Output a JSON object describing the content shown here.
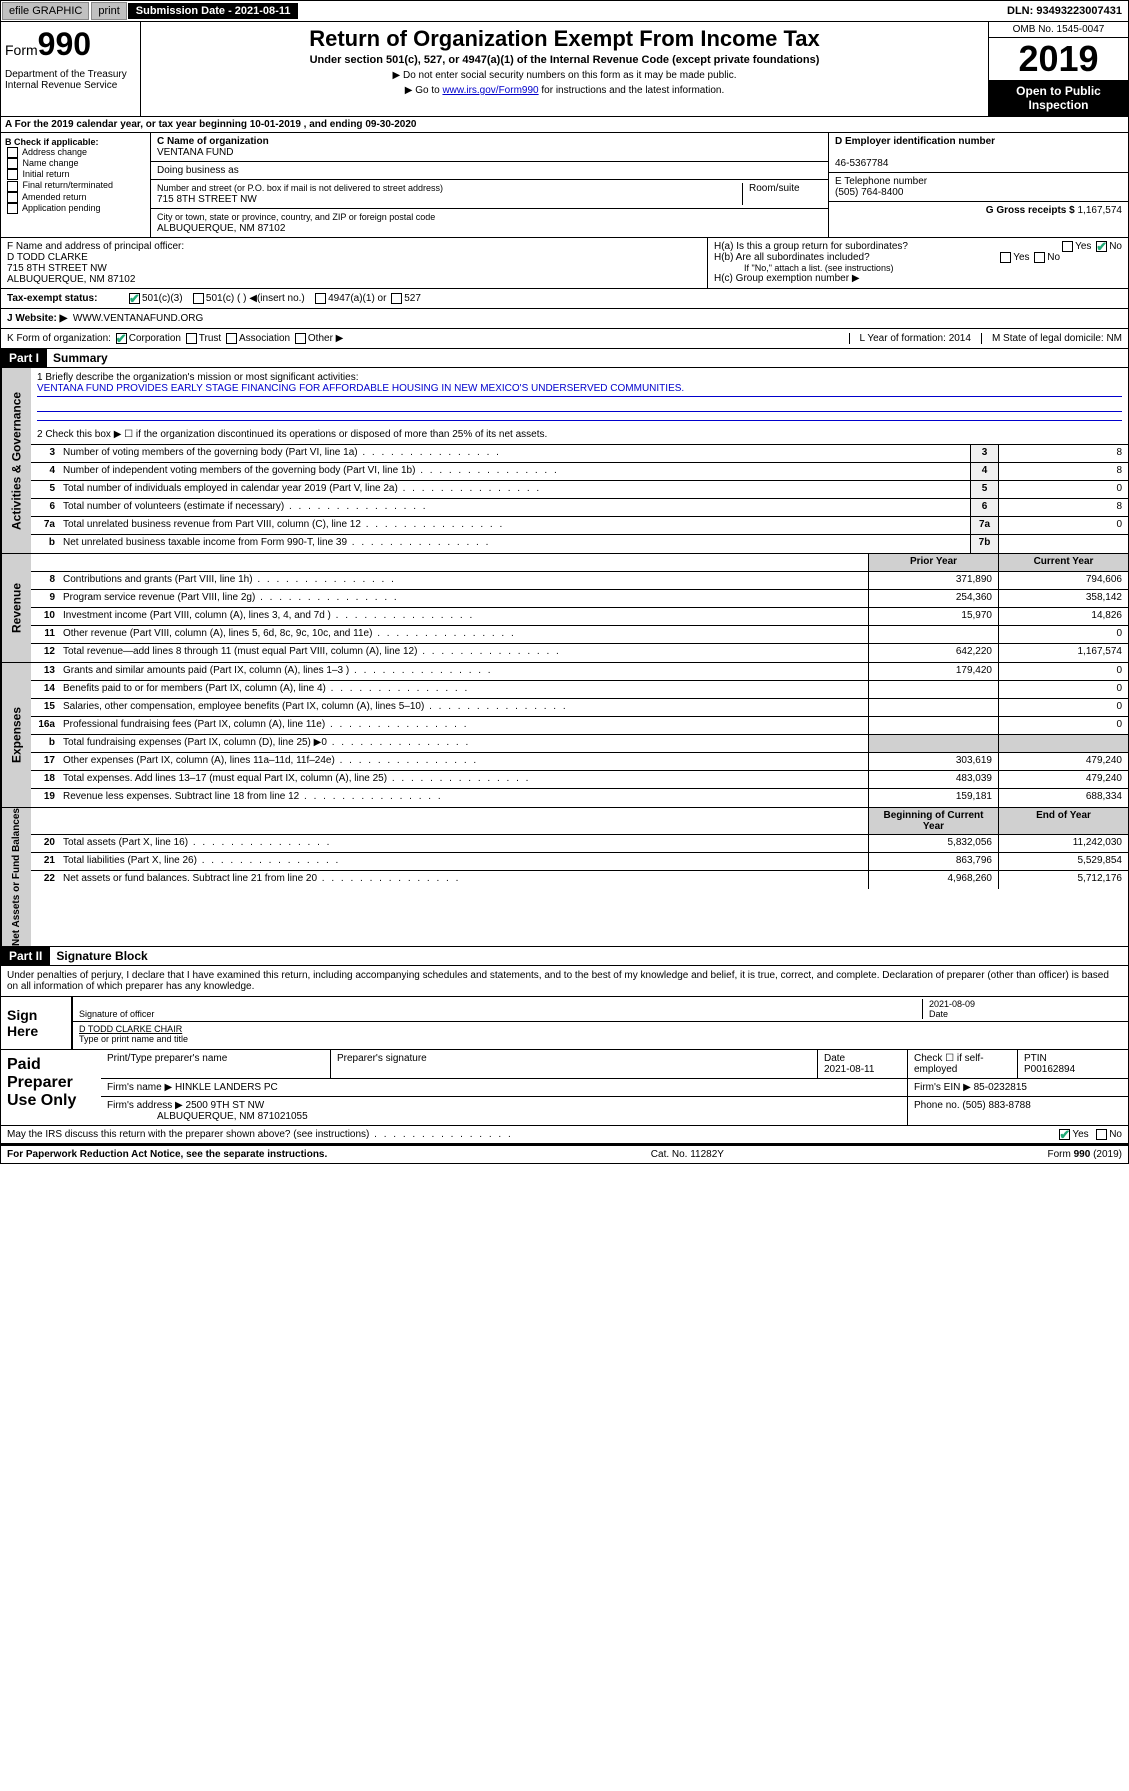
{
  "topbar": {
    "efile": "efile GRAPHIC",
    "print": "print",
    "subdate_lbl": "Submission Date - 2021-08-11",
    "dln": "DLN: 93493223007431"
  },
  "header": {
    "form_label": "Form",
    "form_num": "990",
    "title": "Return of Organization Exempt From Income Tax",
    "subtitle": "Under section 501(c), 527, or 4947(a)(1) of the Internal Revenue Code (except private foundations)",
    "note1": "▶ Do not enter social security numbers on this form as it may be made public.",
    "note2_pre": "▶ Go to ",
    "note2_link": "www.irs.gov/Form990",
    "note2_post": " for instructions and the latest information.",
    "dept": "Department of the Treasury\nInternal Revenue Service",
    "omb": "OMB No. 1545-0047",
    "year": "2019",
    "open": "Open to Public Inspection"
  },
  "period": "A For the 2019 calendar year, or tax year beginning 10-01-2019  , and ending 09-30-2020",
  "check_b": {
    "title": "B Check if applicable:",
    "items": [
      "Address change",
      "Name change",
      "Initial return",
      "Final return/terminated",
      "Amended return",
      "Application pending"
    ]
  },
  "org": {
    "c_lbl": "C Name of organization",
    "name": "VENTANA FUND",
    "dba": "Doing business as",
    "addr_lbl": "Number and street (or P.O. box if mail is not delivered to street address)",
    "room": "Room/suite",
    "addr": "715 8TH STREET NW",
    "city_lbl": "City or town, state or province, country, and ZIP or foreign postal code",
    "city": "ALBUQUERQUE, NM  87102"
  },
  "right_info": {
    "d_lbl": "D Employer identification number",
    "ein": "46-5367784",
    "e_lbl": "E Telephone number",
    "phone": "(505) 764-8400",
    "g_lbl": "G Gross receipts $",
    "gross": "1,167,574"
  },
  "f_block": {
    "f_lbl": "F Name and address of principal officer:",
    "name": "D TODD CLARKE",
    "addr1": "715 8TH STREET NW",
    "addr2": "ALBUQUERQUE, NM  87102"
  },
  "h_block": {
    "ha": "H(a)  Is this a group return for subordinates?",
    "hb": "H(b)  Are all subordinates included?",
    "hb_note": "If \"No,\" attach a list. (see instructions)",
    "hc": "H(c)  Group exemption number ▶"
  },
  "tax_status": {
    "lbl": "Tax-exempt status:",
    "c3": "501(c)(3)",
    "c": "501(c) (  ) ◀(insert no.)",
    "a1": "4947(a)(1) or",
    "s527": "527"
  },
  "website": {
    "lbl": "J   Website: ▶",
    "val": "WWW.VENTANAFUND.ORG"
  },
  "kform": {
    "lbl": "K Form of organization:",
    "corp": "Corporation",
    "trust": "Trust",
    "assoc": "Association",
    "other": "Other ▶",
    "l_lbl": "L Year of formation:",
    "l_val": "2014",
    "m_lbl": "M State of legal domicile:",
    "m_val": "NM"
  },
  "part1": {
    "hdr": "Part I",
    "title": "Summary"
  },
  "summary": {
    "q1": "1  Briefly describe the organization's mission or most significant activities:",
    "mission": "VENTANA FUND PROVIDES EARLY STAGE FINANCING FOR AFFORDABLE HOUSING IN NEW MEXICO'S UNDERSERVED COMMUNITIES.",
    "q2": "2   Check this box ▶ ☐  if the organization discontinued its operations or disposed of more than 25% of its net assets."
  },
  "gov_rows": [
    {
      "n": "3",
      "d": "Number of voting members of the governing body (Part VI, line 1a)",
      "box": "3",
      "v": "8"
    },
    {
      "n": "4",
      "d": "Number of independent voting members of the governing body (Part VI, line 1b)",
      "box": "4",
      "v": "8"
    },
    {
      "n": "5",
      "d": "Total number of individuals employed in calendar year 2019 (Part V, line 2a)",
      "box": "5",
      "v": "0"
    },
    {
      "n": "6",
      "d": "Total number of volunteers (estimate if necessary)",
      "box": "6",
      "v": "8"
    },
    {
      "n": "7a",
      "d": "Total unrelated business revenue from Part VIII, column (C), line 12",
      "box": "7a",
      "v": "0"
    },
    {
      "n": " b",
      "d": "Net unrelated business taxable income from Form 990-T, line 39",
      "box": "7b",
      "v": ""
    }
  ],
  "two_col_hdr": {
    "prior": "Prior Year",
    "current": "Current Year"
  },
  "revenue_rows": [
    {
      "n": "8",
      "d": "Contributions and grants (Part VIII, line 1h)",
      "p": "371,890",
      "c": "794,606"
    },
    {
      "n": "9",
      "d": "Program service revenue (Part VIII, line 2g)",
      "p": "254,360",
      "c": "358,142"
    },
    {
      "n": "10",
      "d": "Investment income (Part VIII, column (A), lines 3, 4, and 7d )",
      "p": "15,970",
      "c": "14,826"
    },
    {
      "n": "11",
      "d": "Other revenue (Part VIII, column (A), lines 5, 6d, 8c, 9c, 10c, and 11e)",
      "p": "",
      "c": "0"
    },
    {
      "n": "12",
      "d": "Total revenue—add lines 8 through 11 (must equal Part VIII, column (A), line 12)",
      "p": "642,220",
      "c": "1,167,574"
    }
  ],
  "expense_rows": [
    {
      "n": "13",
      "d": "Grants and similar amounts paid (Part IX, column (A), lines 1–3 )",
      "p": "179,420",
      "c": "0"
    },
    {
      "n": "14",
      "d": "Benefits paid to or for members (Part IX, column (A), line 4)",
      "p": "",
      "c": "0"
    },
    {
      "n": "15",
      "d": "Salaries, other compensation, employee benefits (Part IX, column (A), lines 5–10)",
      "p": "",
      "c": "0"
    },
    {
      "n": "16a",
      "d": "Professional fundraising fees (Part IX, column (A), line 11e)",
      "p": "",
      "c": "0"
    },
    {
      "n": "b",
      "d": "Total fundraising expenses (Part IX, column (D), line 25) ▶0",
      "p": "",
      "c": "",
      "shaded": true
    },
    {
      "n": "17",
      "d": "Other expenses (Part IX, column (A), lines 11a–11d, 11f–24e)",
      "p": "303,619",
      "c": "479,240"
    },
    {
      "n": "18",
      "d": "Total expenses. Add lines 13–17 (must equal Part IX, column (A), line 25)",
      "p": "483,039",
      "c": "479,240"
    },
    {
      "n": "19",
      "d": "Revenue less expenses. Subtract line 18 from line 12",
      "p": "159,181",
      "c": "688,334"
    }
  ],
  "net_hdr": {
    "beg": "Beginning of Current Year",
    "end": "End of Year"
  },
  "net_rows": [
    {
      "n": "20",
      "d": "Total assets (Part X, line 16)",
      "p": "5,832,056",
      "c": "11,242,030"
    },
    {
      "n": "21",
      "d": "Total liabilities (Part X, line 26)",
      "p": "863,796",
      "c": "5,529,854"
    },
    {
      "n": "22",
      "d": "Net assets or fund balances. Subtract line 21 from line 20",
      "p": "4,968,260",
      "c": "5,712,176"
    }
  ],
  "part2": {
    "hdr": "Part II",
    "title": "Signature Block"
  },
  "declaration": "Under penalties of perjury, I declare that I have examined this return, including accompanying schedules and statements, and to the best of my knowledge and belief, it is true, correct, and complete. Declaration of preparer (other than officer) is based on all information of which preparer has any knowledge.",
  "sign": {
    "here": "Sign Here",
    "sig_lbl": "Signature of officer",
    "date": "2021-08-09",
    "date_lbl": "Date",
    "name": "D TODD CLARKE CHAIR",
    "name_lbl": "Type or print name and title"
  },
  "paid": {
    "lbl": "Paid Preparer Use Only",
    "h1": "Print/Type preparer's name",
    "h2": "Preparer's signature",
    "h3": "Date",
    "h4": "Check ☐ if self-employed",
    "h5": "PTIN",
    "date": "2021-08-11",
    "ptin": "P00162894",
    "firm_lbl": "Firm's name   ▶",
    "firm": "HINKLE LANDERS PC",
    "ein_lbl": "Firm's EIN ▶",
    "ein": "85-0232815",
    "addr_lbl": "Firm's address ▶",
    "addr": "2500 9TH ST NW",
    "addr2": "ALBUQUERQUE, NM  871021055",
    "phone_lbl": "Phone no.",
    "phone": "(505) 883-8788"
  },
  "discuss": "May the IRS discuss this return with the preparer shown above? (see instructions)",
  "footer": {
    "paperwork": "For Paperwork Reduction Act Notice, see the separate instructions.",
    "cat": "Cat. No. 11282Y",
    "form": "Form 990 (2019)"
  },
  "yn": {
    "yes": "Yes",
    "no": "No"
  },
  "sidelabels": {
    "gov": "Activities & Governance",
    "rev": "Revenue",
    "exp": "Expenses",
    "net": "Net Assets or Fund Balances"
  }
}
